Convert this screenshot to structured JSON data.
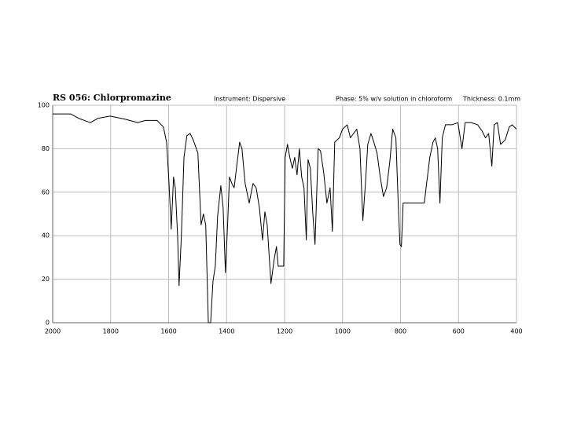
{
  "chart_data": {
    "type": "line",
    "title": "RS 056: Chlorpromazine",
    "annotations": [
      "Instrument: Dispersive",
      "Phase: 5% w/v solution in chloroform",
      "Thickness: 0.1mm"
    ],
    "x": [
      2000,
      1938,
      1911,
      1870,
      1843,
      1802,
      1748,
      1707,
      1680,
      1640,
      1618,
      1607,
      1599,
      1591,
      1583,
      1577,
      1569,
      1564,
      1556,
      1547,
      1537,
      1526,
      1515,
      1499,
      1488,
      1480,
      1472,
      1463,
      1455,
      1447,
      1439,
      1431,
      1420,
      1412,
      1404,
      1396,
      1390,
      1382,
      1374,
      1366,
      1355,
      1347,
      1336,
      1322,
      1309,
      1298,
      1287,
      1276,
      1268,
      1260,
      1247,
      1236,
      1228,
      1222,
      1211,
      1203,
      1198,
      1190,
      1182,
      1173,
      1165,
      1157,
      1149,
      1141,
      1133,
      1125,
      1119,
      1111,
      1103,
      1095,
      1084,
      1076,
      1065,
      1054,
      1043,
      1035,
      1027,
      1011,
      1000,
      984,
      973,
      962,
      951,
      940,
      930,
      921,
      913,
      902,
      892,
      881,
      870,
      859,
      848,
      837,
      827,
      816,
      808,
      802,
      797,
      791,
      718,
      710,
      699,
      688,
      680,
      672,
      664,
      656,
      645,
      623,
      602,
      588,
      577,
      556,
      534,
      518,
      507,
      496,
      485,
      477,
      466,
      455,
      439,
      425,
      415,
      400
    ],
    "values": [
      96,
      96,
      94,
      92,
      94,
      95,
      93.5,
      92,
      93,
      93,
      90,
      83,
      65,
      43,
      67,
      62,
      40,
      17,
      40,
      76,
      86,
      87,
      84,
      78,
      45,
      50,
      45,
      0,
      0,
      19,
      26,
      49,
      63,
      53,
      23,
      47,
      67,
      64,
      62,
      71,
      83,
      80,
      64,
      55,
      64,
      62,
      53,
      38,
      51,
      45,
      18,
      29,
      35,
      26,
      26,
      26,
      76,
      82,
      76,
      71,
      76,
      68,
      80,
      67,
      62,
      38,
      75,
      71,
      51,
      36,
      80,
      79,
      69,
      55,
      62,
      42,
      83,
      85,
      89,
      91,
      85,
      87,
      89,
      80,
      47,
      64,
      82,
      87,
      83,
      78,
      67,
      58,
      62,
      74,
      89,
      85,
      55,
      36,
      35,
      55,
      55,
      64,
      76,
      83,
      85,
      80,
      55,
      85,
      91,
      91,
      92,
      80,
      92,
      92,
      91,
      88,
      85,
      87,
      72,
      91,
      92,
      82,
      84,
      90,
      91,
      89
    ],
    "color": "#000000",
    "xlim": [
      2000,
      400
    ],
    "xticks": [
      2000,
      1800,
      1600,
      1400,
      1200,
      1000,
      800,
      600,
      400
    ],
    "ylim": [
      0,
      100
    ],
    "yticks": [
      0,
      20,
      40,
      60,
      80,
      100
    ],
    "grid": true
  }
}
